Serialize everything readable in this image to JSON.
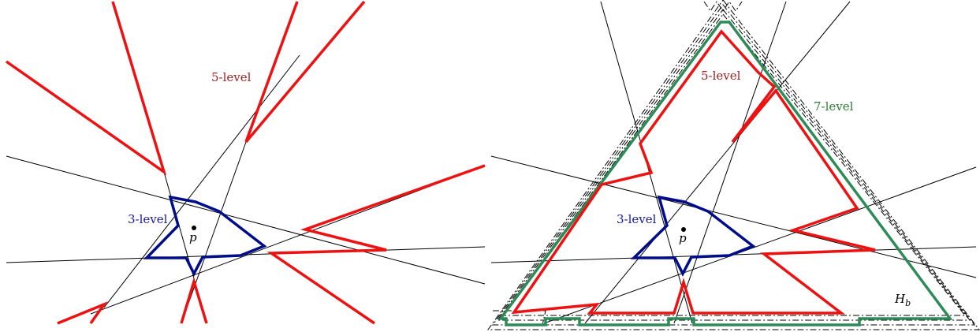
{
  "panels": [
    {
      "id": "left",
      "labels": {
        "five_level": "5-level",
        "three_level": "3-level",
        "point": "p"
      }
    },
    {
      "id": "right",
      "labels": {
        "five_level": "5-level",
        "three_level": "3-level",
        "seven_level": "7-level",
        "point": "p",
        "bounding": "H_b"
      }
    }
  ],
  "colors": {
    "five_level": "#ee1111",
    "three_level": "#000d8a",
    "seven_level": "#2e8b57",
    "five_level_label": "#a02020",
    "three_level_label": "#1a1aa0",
    "seven_level_label": "#2e7d32",
    "line": "#000000"
  }
}
